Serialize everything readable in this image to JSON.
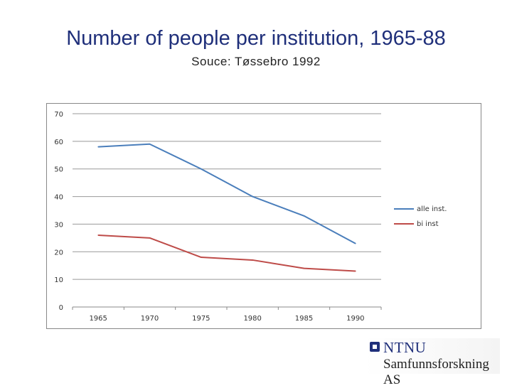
{
  "title": "Number of people per institution, 1965-88",
  "subtitle": "Souce: Tøssebro 1992",
  "chart_data": {
    "type": "line",
    "x": [
      "1965",
      "1970",
      "1975",
      "1980",
      "1985",
      "1990"
    ],
    "ylim": [
      0,
      70
    ],
    "yticks": [
      "0",
      "10",
      "20",
      "30",
      "40",
      "50",
      "60",
      "70"
    ],
    "grid": "horizontal",
    "legend_position": "right",
    "series": [
      {
        "name": "alle inst.",
        "color": "#4a7ebb",
        "values": [
          58,
          59,
          50,
          40,
          33,
          23
        ]
      },
      {
        "name": "bi inst",
        "color": "#be4b48",
        "values": [
          26,
          25,
          18,
          17,
          14,
          13
        ]
      }
    ]
  },
  "logo": {
    "name": "NTNU",
    "subtitle": "Samfunnsforskning AS"
  }
}
